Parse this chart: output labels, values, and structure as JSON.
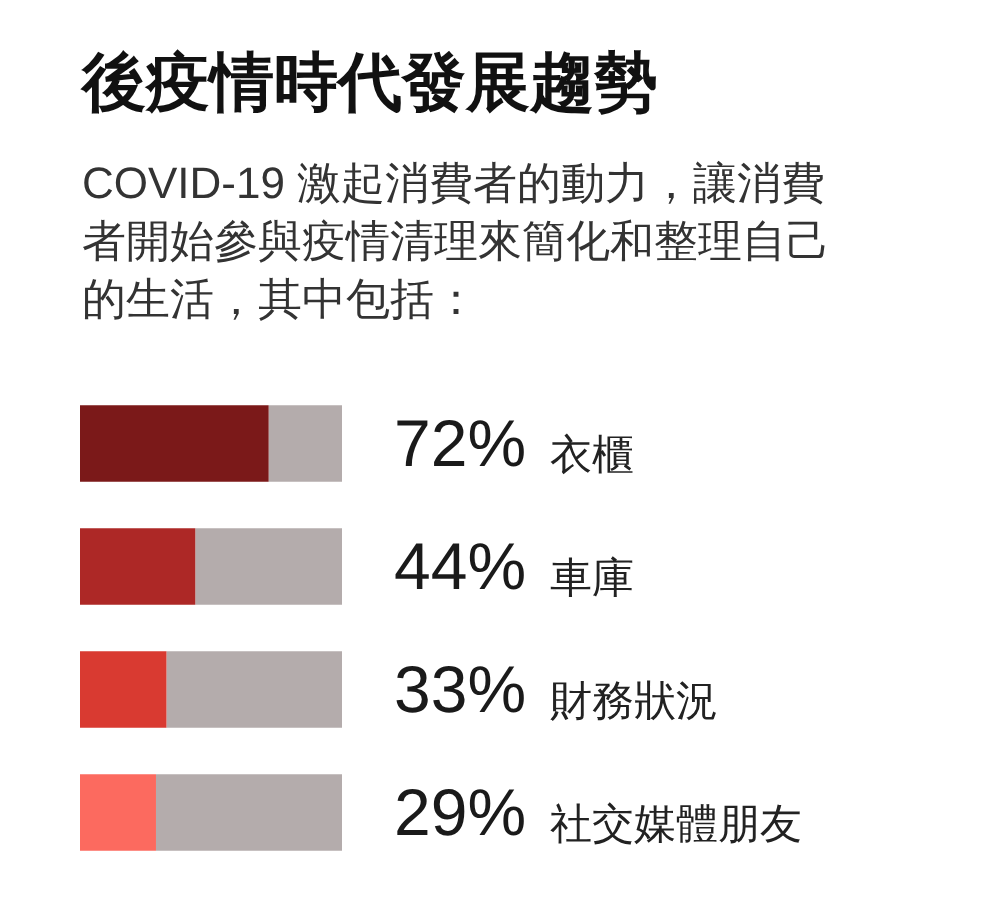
{
  "chart_data": {
    "type": "bar",
    "orientation": "horizontal",
    "stacked": true,
    "title": "後疫情時代發展趨勢",
    "subtitle": "COVID-19 激起消費者的動力，讓消費者開始參與疫情清理來簡化和整理自己的生活，其中包括：",
    "categories": [
      "衣櫃",
      "車庫",
      "財務狀況",
      "社交媒體朋友"
    ],
    "series": [
      {
        "colors": [
          "#7b1919",
          "#ad2826",
          "#d93a31",
          "#fc6a5f"
        ],
        "values": [
          72,
          44,
          33,
          29
        ],
        "value_labels": [
          "72%",
          "44%",
          "33%",
          "29%"
        ]
      },
      {
        "color": "#b4acac",
        "values": [
          28,
          56,
          67,
          71
        ]
      }
    ],
    "xlim": [
      0,
      100
    ],
    "tick_labels": "y",
    "legend": false
  }
}
